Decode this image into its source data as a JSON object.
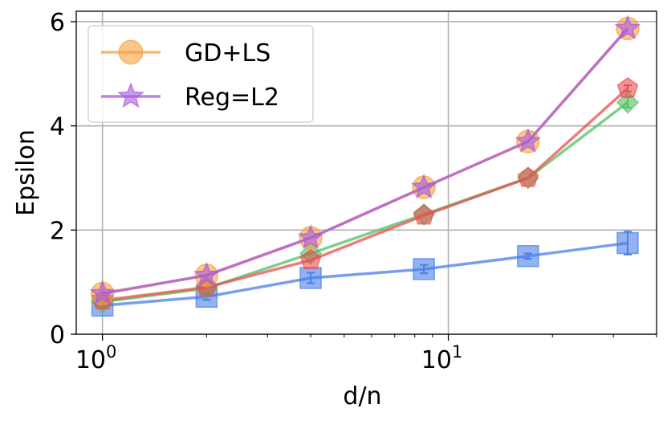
{
  "chart_data": {
    "type": "line",
    "title": "",
    "xlabel": "d/n",
    "ylabel": "Epsilon",
    "x_scale": "log",
    "xlim": [
      0.84,
      40
    ],
    "ylim": [
      0,
      6.2
    ],
    "x_ticks": [
      {
        "value": 1,
        "base": "10",
        "exp": "0"
      },
      {
        "value": 10,
        "base": "10",
        "exp": "1"
      }
    ],
    "y_ticks": [
      {
        "value": 0,
        "label": "0"
      },
      {
        "value": 2,
        "label": "2"
      },
      {
        "value": 4,
        "label": "4"
      },
      {
        "value": 6,
        "label": "6"
      }
    ],
    "grid": true,
    "legend_position": "top-left",
    "x": [
      1,
      2,
      4,
      8.5,
      17,
      33
    ],
    "series": [
      {
        "name": "GD+LS",
        "color": "#f5a040",
        "marker": "circle",
        "values": [
          0.78,
          1.13,
          1.85,
          2.82,
          3.7,
          5.87
        ],
        "err": [
          0,
          0,
          0,
          0,
          0,
          0
        ]
      },
      {
        "name": "Reg=L2",
        "color": "#a85ae0",
        "marker": "star",
        "values": [
          0.78,
          1.13,
          1.85,
          2.82,
          3.7,
          5.87
        ],
        "err": [
          0,
          0,
          0,
          0,
          0,
          0
        ]
      },
      {
        "name": "",
        "color": "#e85050",
        "marker": "pentagon",
        "values": [
          0.65,
          0.9,
          1.42,
          2.28,
          3.0,
          4.72
        ],
        "err": [
          0,
          0,
          0,
          0,
          0,
          0.06
        ]
      },
      {
        "name": "",
        "color": "#50c060",
        "marker": "diamond",
        "values": [
          0.62,
          0.88,
          1.55,
          2.3,
          3.0,
          4.45
        ],
        "err": [
          0,
          0,
          0,
          0,
          0,
          0.1
        ]
      },
      {
        "name": "",
        "color": "#4a7ee8",
        "marker": "square",
        "values": [
          0.55,
          0.72,
          1.08,
          1.25,
          1.5,
          1.75
        ],
        "err": [
          0.05,
          0.06,
          0.1,
          0.08,
          0.05,
          0.22
        ]
      }
    ]
  }
}
